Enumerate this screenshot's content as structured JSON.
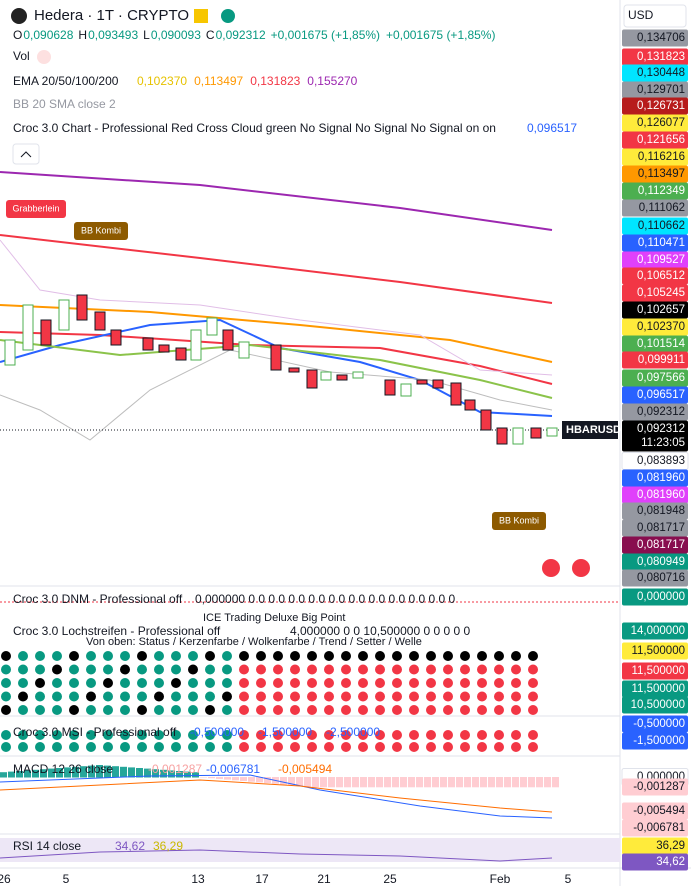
{
  "header": {
    "symbol": "Hedera · 1T · CRYPTO",
    "currency": "USD",
    "ohlc": [
      {
        "key": "O",
        "value": "0,090628"
      },
      {
        "key": "H",
        "value": "0,093493"
      },
      {
        "key": "L",
        "value": "0,090093"
      },
      {
        "key": "C",
        "value": "0,092312"
      }
    ],
    "change": [
      "+0,001675 (+1,85%)",
      "+0,001675 (+1,85%)"
    ]
  },
  "legend": {
    "vol": "Vol",
    "ema": {
      "label": "EMA 20/50/100/200",
      "values": [
        "0,102370",
        "0,113497",
        "0,131823",
        "0,155270"
      ]
    },
    "bb": "BB 20 SMA close 2",
    "croc": {
      "label": "Croc 3.0 Chart - Professional Red Cross Cloud green No Signal No Signal No Signal on on",
      "value": "0,096517"
    }
  },
  "annotations": {
    "grabberlein": "Grabberlein",
    "bb_kombi_top": "BB Kombi",
    "bb_kombi_bottom": "BB Kombi",
    "symbol_tag": "HBARUSD",
    "countdown": "11:23:05"
  },
  "price_scale": [
    {
      "label": "0,134706",
      "color": "#9598a1"
    },
    {
      "label": "0,131823",
      "color": "#f23645"
    },
    {
      "label": "0,130448",
      "color": "#00e5ff"
    },
    {
      "label": "0,129701",
      "color": "#9598a1"
    },
    {
      "label": "0,126731",
      "color": "#b71c1c"
    },
    {
      "label": "0,126077",
      "color": "#ffeb3b"
    },
    {
      "label": "0,121656",
      "color": "#f23645"
    },
    {
      "label": "0,116216",
      "color": "#ffeb3b"
    },
    {
      "label": "0,113497",
      "color": "#ff9800"
    },
    {
      "label": "0,112349",
      "color": "#4caf50"
    },
    {
      "label": "0,111062",
      "color": "#9598a1"
    },
    {
      "label": "0,110662",
      "color": "#00e5ff"
    },
    {
      "label": "0,110471",
      "color": "#2962ff"
    },
    {
      "label": "0,109527",
      "color": "#e040fb"
    },
    {
      "label": "0,106512",
      "color": "#f23645"
    },
    {
      "label": "0,105245",
      "color": "#f23645"
    },
    {
      "label": "0,102657",
      "color": "#000000"
    },
    {
      "label": "0,102370",
      "color": "#ffeb3b"
    },
    {
      "label": "0,101514",
      "color": "#4caf50"
    },
    {
      "label": "0,099911",
      "color": "#f23645"
    },
    {
      "label": "0,097566",
      "color": "#4caf50"
    },
    {
      "label": "0,096517",
      "color": "#2962ff"
    },
    {
      "label": "0,092312",
      "color": "#9598a1"
    },
    {
      "label": "0,092312",
      "color": "#000000"
    },
    {
      "label": "11:23:05",
      "color": "#000000"
    },
    {
      "label": "0,083893",
      "color": "#ffffff"
    },
    {
      "label": "0,081960",
      "color": "#2962ff"
    },
    {
      "label": "0,081960",
      "color": "#e040fb"
    },
    {
      "label": "0,081948",
      "color": "#9598a1"
    },
    {
      "label": "0,081717",
      "color": "#9598a1"
    },
    {
      "label": "0,081717",
      "color": "#880e4f"
    },
    {
      "label": "0,080949",
      "color": "#089981"
    },
    {
      "label": "0,080716",
      "color": "#9598a1"
    },
    {
      "label": "0,000000",
      "color": "#089981"
    },
    {
      "label": "14,000000",
      "color": "#089981"
    },
    {
      "label": "11,500000",
      "color": "#ffeb3b"
    },
    {
      "label": "11,500000",
      "color": "#f23645"
    },
    {
      "label": "11,500000",
      "color": "#089981"
    },
    {
      "label": "10,500000",
      "color": "#089981"
    },
    {
      "label": "-0,500000",
      "color": "#2962ff"
    },
    {
      "label": "-1,500000",
      "color": "#2962ff"
    },
    {
      "label": "0,000000",
      "color": "#ffffff"
    },
    {
      "label": "-0,001287",
      "color": "#ffcdd2"
    },
    {
      "label": "-0,005494",
      "color": "#ffcdd2"
    },
    {
      "label": "-0,006781",
      "color": "#ffcdd2"
    },
    {
      "label": "36,29",
      "color": "#ffeb3b"
    },
    {
      "label": "34,62",
      "color": "#7e57c2"
    }
  ],
  "panes": {
    "dnm": "Croc 3.0 DNM - Professional off",
    "dnm_values": "0,000000 0 0 0 0 0 0 0 0 0 0 0 0 0 0 0 0 0 0 0 0 0",
    "ice": "ICE Trading Deluxe Big Point",
    "lochstreifen": "Croc 3.0 Lochstreifen - Professional off",
    "lochstreifen_values": "4,000000 0 0 10,500000 0 0 0 0 0",
    "lochstreifen_note": "Von oben: Status / Kerzenfarbe / Wolkenfarbe / Trend / Setter / Welle",
    "msi": "Croc 3.0 MSI - Professional off",
    "msi_values": [
      "-0,500000",
      "-1,500000",
      "-2,500000"
    ],
    "macd": "MACD 12 26 close",
    "macd_values": [
      "-0,001287",
      "-0,006781",
      "-0,005494"
    ],
    "rsi": "RSI 14 close",
    "rsi_values": [
      "34,62",
      "36,29"
    ]
  },
  "x_axis": [
    "26",
    "5",
    "13",
    "17",
    "21",
    "25",
    "Feb",
    "5"
  ]
}
